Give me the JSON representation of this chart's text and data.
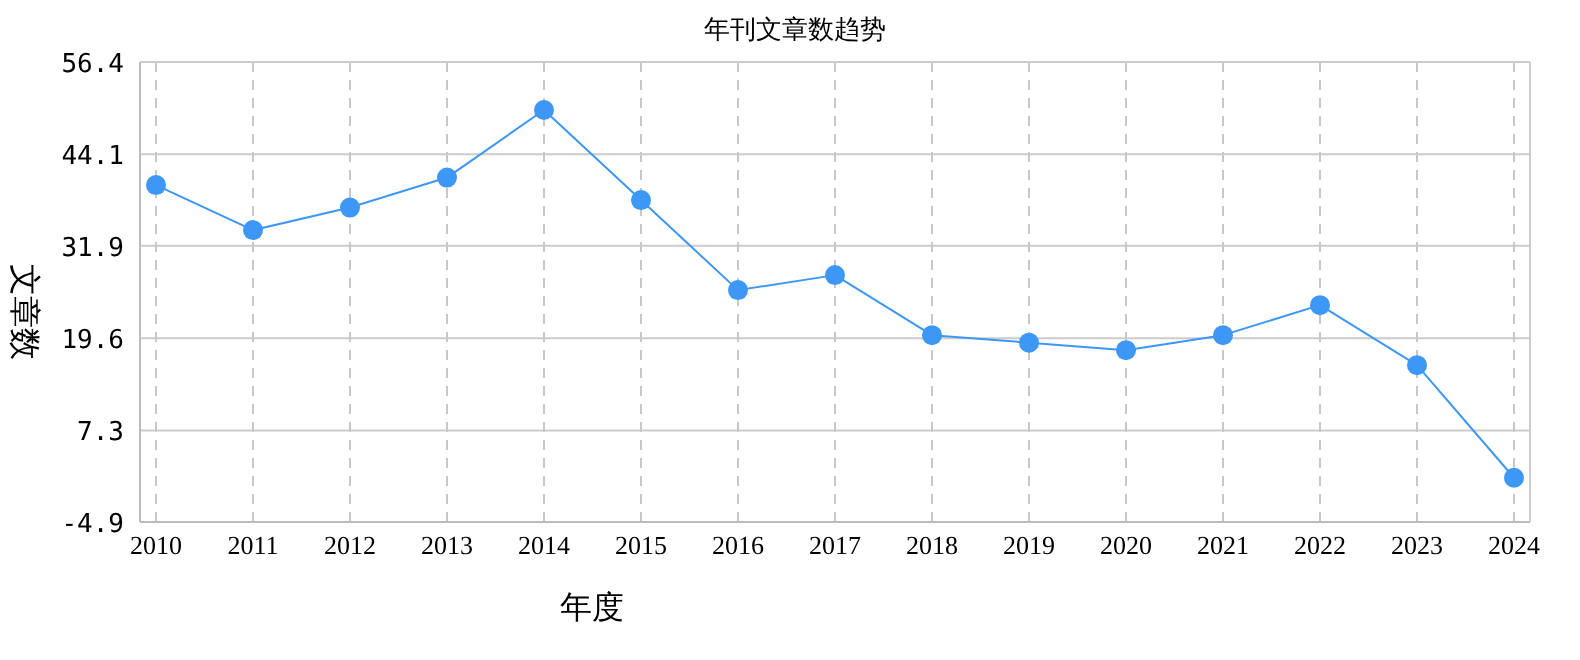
{
  "chart_data": {
    "type": "line",
    "title": "年刊文章数趋势",
    "xlabel": "年度",
    "ylabel": "文章数",
    "categories": [
      "2010",
      "2011",
      "2012",
      "2013",
      "2014",
      "2015",
      "2016",
      "2017",
      "2018",
      "2019",
      "2020",
      "2021",
      "2022",
      "2023",
      "2024"
    ],
    "series": [
      {
        "color": "#3d97f5",
        "values": [
          40,
          34,
          37,
          41,
          50,
          38,
          26,
          28,
          20,
          19,
          18,
          20,
          24,
          16,
          1
        ]
      }
    ],
    "ylim": [
      -4.9,
      56.4
    ],
    "yticks": [
      -4.9,
      7.3,
      19.6,
      31.9,
      44.1,
      56.4
    ],
    "grid": true,
    "marker": "circle",
    "line_style": "solid"
  }
}
